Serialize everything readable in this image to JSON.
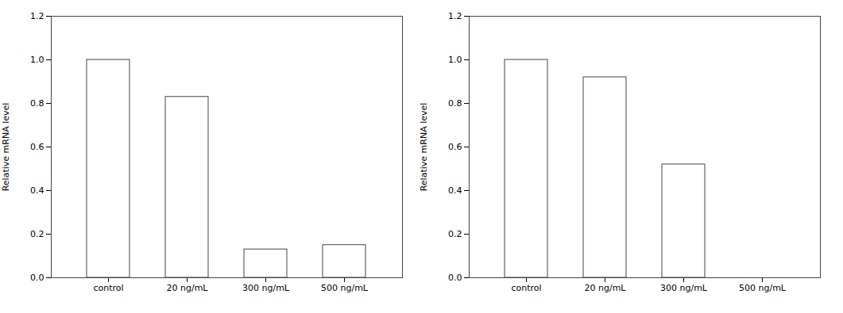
{
  "chart_data": [
    {
      "type": "bar",
      "categories": [
        "control",
        "20 ng/mL",
        "300 ng/mL",
        "500 ng/mL"
      ],
      "values": [
        1.0,
        0.83,
        0.13,
        0.15
      ],
      "color": "#ffffff",
      "ylabel": "Relative mRNA level",
      "ylim": [
        0,
        1.2
      ],
      "yticks": [
        {
          "value": 0,
          "label": "0.0"
        },
        0.2,
        0.4,
        0.6,
        0.8,
        {
          "value": 1,
          "label": "1.0"
        },
        1.2
      ],
      "grid": false
    },
    {
      "type": "bar",
      "categories": [
        "control",
        "20 ng/mL",
        "300 ng/mL",
        "500 ng/mL"
      ],
      "values": [
        1.0,
        0.92,
        0.52,
        0.0
      ],
      "color": "#ffffff",
      "ylabel": "Relative mRNA level",
      "ylim": [
        0,
        1.2
      ],
      "yticks": [
        {
          "value": 0,
          "label": "0.0"
        },
        0.2,
        0.4,
        0.6,
        0.8,
        {
          "value": 1,
          "label": "1.0"
        },
        1.2
      ],
      "grid": false
    }
  ]
}
